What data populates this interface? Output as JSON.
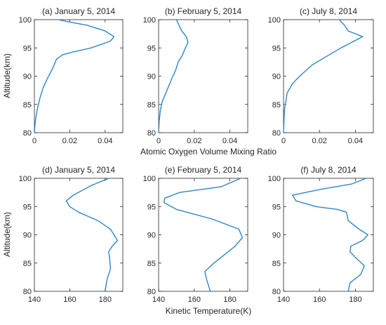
{
  "colors": {
    "line": "#2e86c9",
    "axis": "#262626",
    "background": "#ffffff"
  },
  "labels": {
    "ylabel_top": "Altitude(km)",
    "ylabel_bottom": "Altitude(km)",
    "xlabel_top": "Atomic Oxygen Volume Mixing Ratio",
    "xlabel_bottom": "Kinetic Temperature(K)"
  },
  "chart_data": [
    {
      "type": "line",
      "title": "(a) January 5, 2014",
      "xlim": [
        0,
        0.05
      ],
      "ylim": [
        80,
        100
      ],
      "xticks": [
        0,
        0.02,
        0.04
      ],
      "xtick_labels": [
        "0",
        "0.02",
        "0.04"
      ],
      "yticks": [
        80,
        85,
        90,
        95,
        100
      ],
      "ytick_labels": [
        "80",
        "85",
        "90",
        "95",
        "100"
      ],
      "series": [
        {
          "x": [
            0,
            0.0005,
            0.0015,
            0.003,
            0.005,
            0.008,
            0.0105,
            0.0125,
            0.016,
            0.022,
            0.032,
            0.043,
            0.045,
            0.04,
            0.03,
            0.018,
            0.0135
          ],
          "y": [
            80,
            82,
            84,
            86,
            88,
            90,
            91.5,
            93,
            93.8,
            94.3,
            95,
            96.2,
            97,
            98,
            99,
            99.7,
            100
          ]
        }
      ]
    },
    {
      "type": "line",
      "title": "(b) February 5, 2014",
      "xlim": [
        0,
        0.05
      ],
      "ylim": [
        80,
        100
      ],
      "xticks": [
        0,
        0.02,
        0.04
      ],
      "xtick_labels": [
        "0",
        "0.02",
        "0.04"
      ],
      "yticks": [
        80,
        85,
        90,
        95,
        100
      ],
      "ytick_labels": [
        "80",
        "85",
        "90",
        "95",
        "100"
      ],
      "series": [
        {
          "x": [
            0,
            0.0003,
            0.001,
            0.002,
            0.004,
            0.006,
            0.008,
            0.0095,
            0.011,
            0.013,
            0.015,
            0.0165,
            0.0155,
            0.013,
            0.011,
            0.01
          ],
          "y": [
            80,
            82,
            84,
            85.5,
            87,
            88.5,
            90,
            91,
            92.5,
            93.5,
            95,
            96,
            97,
            98,
            99.3,
            100
          ]
        }
      ]
    },
    {
      "type": "line",
      "title": "(c) July 8, 2014",
      "xlim": [
        0,
        0.05
      ],
      "ylim": [
        80,
        100
      ],
      "xticks": [
        0,
        0.02,
        0.04
      ],
      "xtick_labels": [
        "0",
        "0.02",
        "0.04"
      ],
      "yticks": [
        80,
        85,
        90,
        95,
        100
      ],
      "ytick_labels": [
        "80",
        "85",
        "90",
        "95",
        "100"
      ],
      "series": [
        {
          "x": [
            0,
            0.0005,
            0.002,
            0.005,
            0.01,
            0.016,
            0.024,
            0.032,
            0.038,
            0.044,
            0.036,
            0.034,
            0.031
          ],
          "y": [
            80,
            84,
            87,
            88.7,
            90.3,
            92,
            93.5,
            95,
            96,
            97,
            98,
            99,
            100
          ]
        }
      ]
    },
    {
      "type": "line",
      "title": "(d) January 5, 2014",
      "xlim": [
        140,
        190
      ],
      "ylim": [
        80,
        100
      ],
      "xticks": [
        140,
        160,
        180
      ],
      "xtick_labels": [
        "140",
        "160",
        "180"
      ],
      "yticks": [
        80,
        85,
        90,
        95,
        100
      ],
      "ytick_labels": [
        "80",
        "85",
        "90",
        "95",
        "100"
      ],
      "series": [
        {
          "x": [
            180,
            181,
            183,
            182.5,
            182,
            184,
            187,
            183,
            176,
            165,
            160,
            158,
            162,
            172,
            182
          ],
          "y": [
            80,
            82,
            84,
            86,
            87,
            88,
            89,
            91,
            92.5,
            94,
            95,
            96,
            97,
            98.7,
            100
          ]
        }
      ]
    },
    {
      "type": "line",
      "title": "(e) February 5, 2014",
      "xlim": [
        140,
        190
      ],
      "ylim": [
        80,
        100
      ],
      "xticks": [
        140,
        160,
        180
      ],
      "xtick_labels": [
        "140",
        "160",
        "180"
      ],
      "yticks": [
        80,
        85,
        90,
        95,
        100
      ],
      "ytick_labels": [
        "80",
        "85",
        "90",
        "95",
        "100"
      ],
      "series": [
        {
          "x": [
            169,
            167,
            166,
            171,
            177,
            183,
            187,
            185,
            170,
            150,
            143,
            143.5,
            152,
            175,
            186
          ],
          "y": [
            80,
            82,
            83.5,
            85,
            86.5,
            88,
            89.5,
            91,
            92.8,
            94.5,
            95.7,
            96.5,
            97.5,
            98.5,
            100
          ]
        }
      ]
    },
    {
      "type": "line",
      "title": "(f) July 8, 2014",
      "xlim": [
        140,
        190
      ],
      "ylim": [
        80,
        100
      ],
      "xticks": [
        140,
        160,
        180
      ],
      "xtick_labels": [
        "140",
        "160",
        "180"
      ],
      "yticks": [
        80,
        85,
        90,
        95,
        100
      ],
      "ytick_labels": [
        "80",
        "85",
        "90",
        "95",
        "100"
      ],
      "series": [
        {
          "x": [
            176,
            177,
            183,
            185,
            180,
            177,
            177.5,
            184,
            187,
            182,
            176,
            175,
            170,
            158,
            147,
            145,
            160,
            178,
            186
          ],
          "y": [
            80,
            81.5,
            83,
            84.5,
            86,
            87,
            88,
            89,
            90,
            91,
            92.5,
            94,
            94.5,
            95,
            96,
            97,
            98,
            99,
            100
          ]
        }
      ]
    }
  ]
}
